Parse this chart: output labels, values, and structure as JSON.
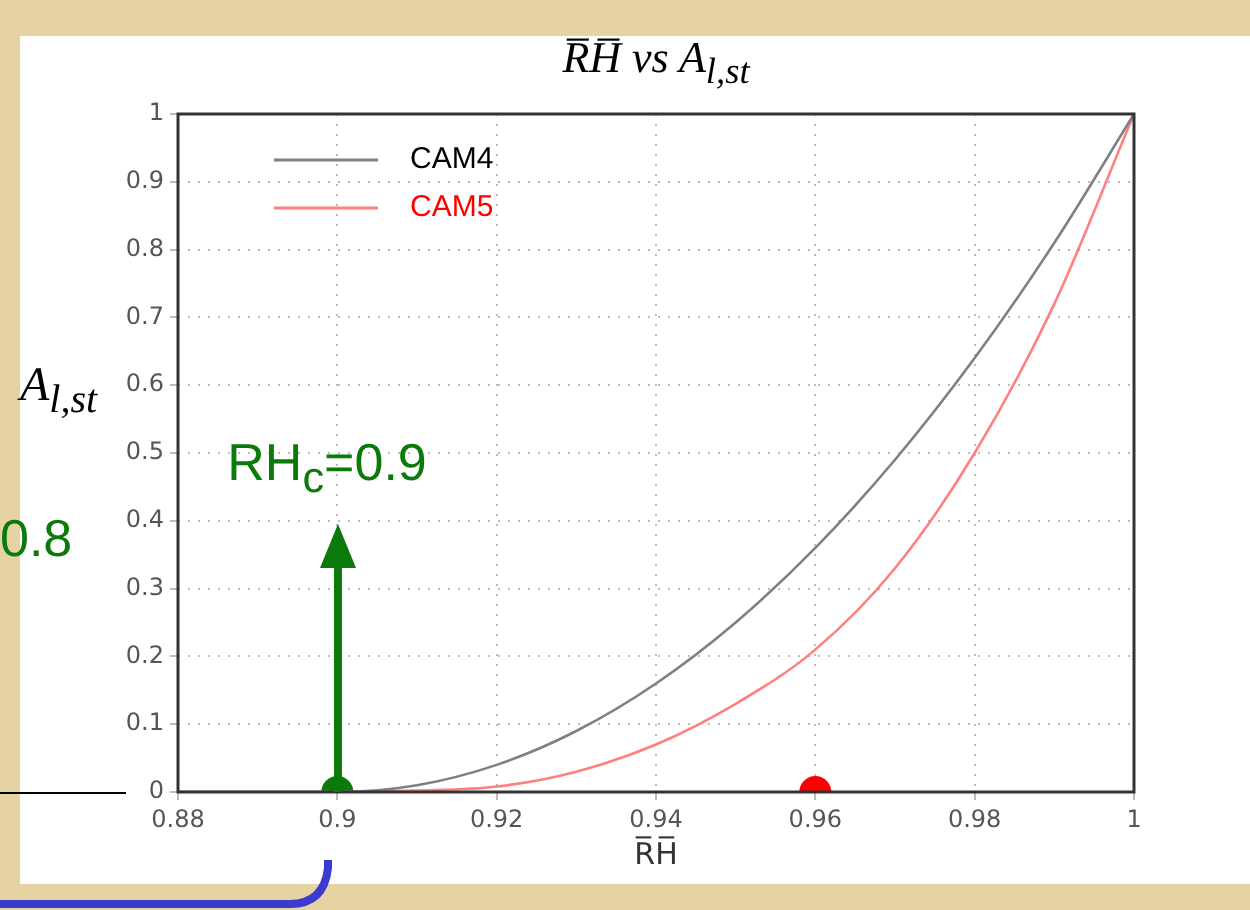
{
  "chart_data": {
    "type": "line",
    "title": "R̅H̅ vs A$_{l,st}$",
    "xlabel": "R̅H̅",
    "ylabel": "A$_{l,st}$",
    "xlim": [
      0.88,
      1
    ],
    "xticks": [
      0.88,
      0.9,
      0.92,
      0.94,
      0.96,
      0.98,
      1
    ],
    "ylim": [
      0,
      1
    ],
    "yticks": [
      0,
      0.1,
      0.2,
      0.3,
      0.4,
      0.5,
      0.6,
      0.7,
      0.8,
      0.9,
      1
    ],
    "grid": true,
    "legend": "top left",
    "marker": "none",
    "line_style": "solid",
    "series": [
      {
        "name": "CAM4",
        "color": "#808080",
        "x": [
          0.88,
          0.9,
          0.91,
          0.92,
          0.93,
          0.94,
          0.95,
          0.96,
          0.97,
          0.98,
          0.99,
          1
        ],
        "values": [
          0,
          0,
          0.01,
          0.04,
          0.09,
          0.16,
          0.25,
          0.36,
          0.49,
          0.64,
          0.81,
          1
        ]
      },
      {
        "name": "CAM5",
        "color": "#ff8080",
        "x": [
          0.88,
          0.9,
          0.91,
          0.92,
          0.93,
          0.94,
          0.95,
          0.96,
          0.97,
          0.98,
          0.99,
          1
        ],
        "values": [
          0,
          0,
          0.002,
          0.008,
          0.03,
          0.07,
          0.13,
          0.21,
          0.33,
          0.5,
          0.72,
          1
        ]
      },
      {
        "type": "scatter",
        "marker": "circle",
        "x": [
          0.9,
          0.96
        ],
        "values": [
          0,
          0
        ],
        "colors": [
          "#0a7a0a",
          "#ff0000"
        ]
      }
    ],
    "annotations": [
      {
        "text": "RH$_{c}$=0.9",
        "x": 0.9,
        "y": 0
      },
      "0.8"
    ]
  }
}
